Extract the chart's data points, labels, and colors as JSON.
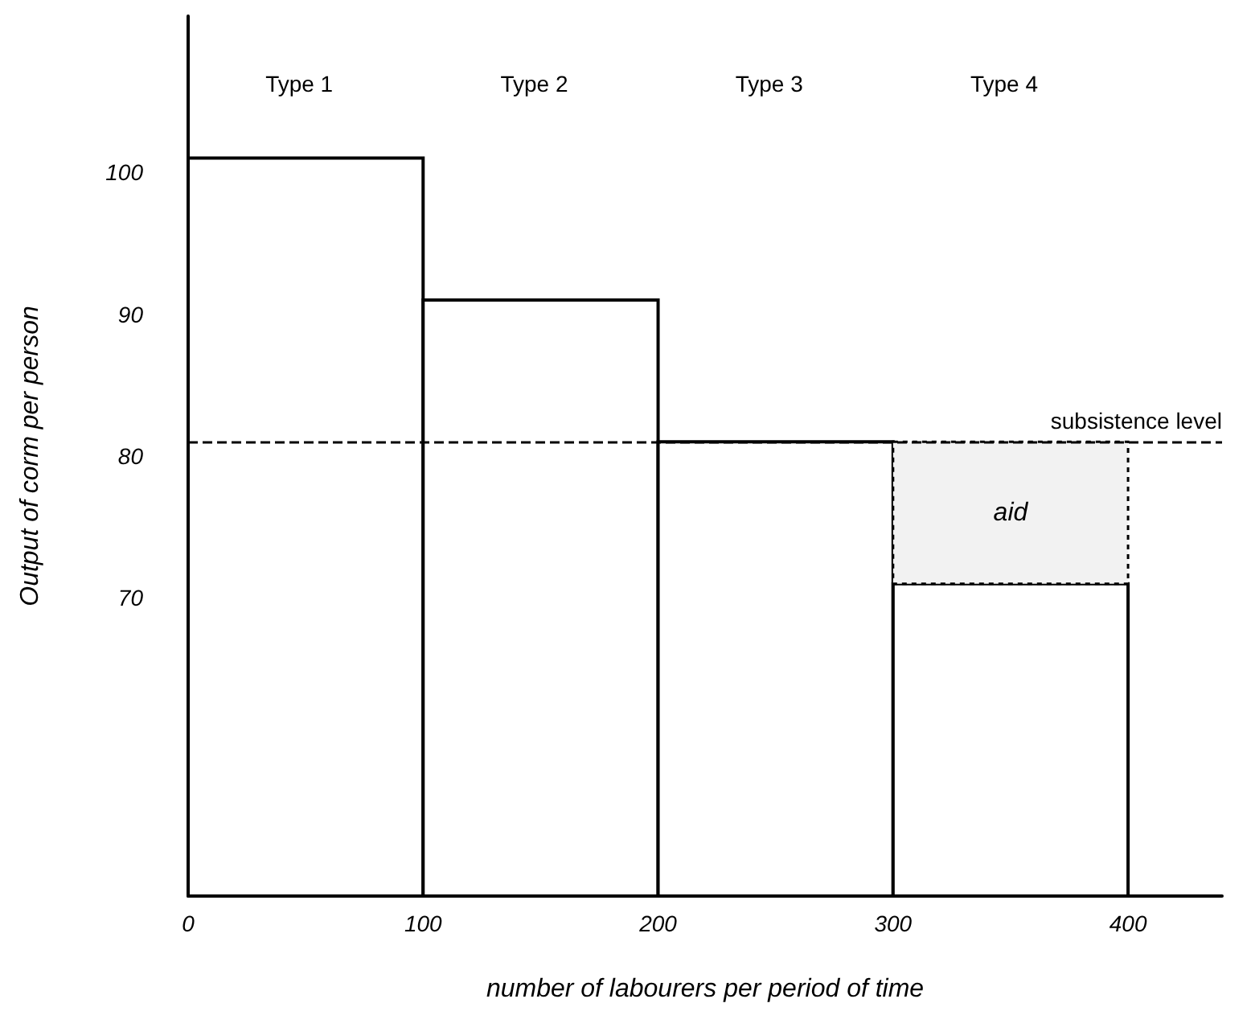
{
  "chart_data": {
    "type": "bar",
    "xlabel": "number of labourers per period of time",
    "ylabel": "Output of corm per person",
    "x": [
      50,
      150,
      250,
      350
    ],
    "series": [
      {
        "color": "#ffffff",
        "values": [
          101,
          91,
          81,
          71
        ]
      },
      {
        "name": "aid",
        "color": "#f2f2f2",
        "values": [
          null,
          null,
          null,
          10
        ],
        "base": [
          null,
          null,
          null,
          71
        ]
      }
    ],
    "xlim": [
      0,
      440
    ],
    "xticks": [
      0,
      100,
      200,
      300,
      400
    ],
    "ylim": [
      49,
      111
    ],
    "yticks": [
      70,
      80,
      90,
      100
    ],
    "grid": false,
    "legend": false,
    "ref_lines": [
      {
        "axis": "y",
        "value": 81,
        "label": "subsistence level",
        "line_style": "dashed",
        "color": "#000000"
      }
    ],
    "annotations": [
      "Type 1",
      "Type 2",
      "Type 3",
      "Type 4"
    ]
  }
}
